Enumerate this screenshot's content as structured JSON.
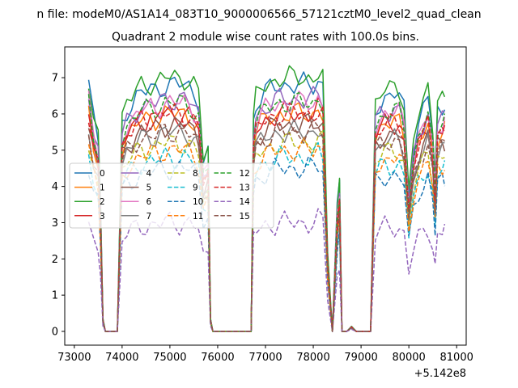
{
  "chart_data": {
    "type": "line",
    "suptitle": "n file: modeM0/AS1A14_083T10_9000006566_57121cztM0_level2_quad_clean",
    "title": "Quadrant 2 module wise count rates with 100.0s bins.",
    "x_offset_label": "+5.142e8",
    "xlim": [
      72800,
      81200
    ],
    "ylim": [
      -0.38,
      7.85
    ],
    "x_ticks": [
      73000,
      74000,
      75000,
      76000,
      77000,
      78000,
      79000,
      80000,
      81000
    ],
    "x_tick_labels": [
      "73000",
      "74000",
      "75000",
      "76000",
      "77000",
      "78000",
      "79000",
      "80000",
      "81000"
    ],
    "y_ticks": [
      0,
      1,
      2,
      3,
      4,
      5,
      6,
      7
    ],
    "y_tick_labels": [
      "0",
      "1",
      "2",
      "3",
      "4",
      "5",
      "6",
      "7"
    ],
    "grid": false,
    "legend_position": "center-left",
    "legend_columns": 4,
    "series": [
      {
        "name": "0",
        "color": "#1f77b4",
        "style": "solid",
        "level": 6.8
      },
      {
        "name": "1",
        "color": "#ff7f0e",
        "style": "solid",
        "level": 6.0
      },
      {
        "name": "2",
        "color": "#2ca02c",
        "style": "solid",
        "level": 7.0
      },
      {
        "name": "3",
        "color": "#d62728",
        "style": "solid",
        "level": 6.0
      },
      {
        "name": "4",
        "color": "#9467bd",
        "style": "solid",
        "level": 6.4
      },
      {
        "name": "5",
        "color": "#8c564b",
        "style": "solid",
        "level": 5.7
      },
      {
        "name": "6",
        "color": "#e377c2",
        "style": "solid",
        "level": 6.3
      },
      {
        "name": "7",
        "color": "#7f7f7f",
        "style": "solid",
        "level": 5.5
      },
      {
        "name": "8",
        "color": "#bcbd22",
        "style": "dashed",
        "level": 5.2
      },
      {
        "name": "9",
        "color": "#17becf",
        "style": "dashed",
        "level": 4.8
      },
      {
        "name": "10",
        "color": "#1f77b4",
        "style": "dashed",
        "level": 4.5
      },
      {
        "name": "11",
        "color": "#ff7f0e",
        "style": "dashed",
        "level": 5.0
      },
      {
        "name": "12",
        "color": "#2ca02c",
        "style": "dashed",
        "level": 6.3
      },
      {
        "name": "13",
        "color": "#d62728",
        "style": "dashed",
        "level": 6.0
      },
      {
        "name": "14",
        "color": "#9467bd",
        "style": "dashed",
        "level": 3.0
      },
      {
        "name": "15",
        "color": "#8c564b",
        "style": "dashed",
        "level": 5.5
      }
    ],
    "activity_profile": [
      [
        73300,
        1.0
      ],
      [
        73400,
        0.86
      ],
      [
        73500,
        0.78
      ],
      [
        73550,
        0.5
      ],
      [
        73600,
        0.05
      ],
      [
        73650,
        0.0
      ],
      [
        73700,
        0.0
      ],
      [
        73800,
        0.0
      ],
      [
        73900,
        0.0
      ],
      [
        74000,
        0.85
      ],
      [
        74100,
        0.9
      ],
      [
        74200,
        0.92
      ],
      [
        74300,
        0.95
      ],
      [
        74400,
        0.97
      ],
      [
        74500,
        0.97
      ],
      [
        74600,
        0.98
      ],
      [
        74700,
        0.98
      ],
      [
        74800,
        0.99
      ],
      [
        74900,
        1.0
      ],
      [
        75000,
        1.0
      ],
      [
        75100,
        1.0
      ],
      [
        75200,
        1.0
      ],
      [
        75300,
        1.0
      ],
      [
        75400,
        0.99
      ],
      [
        75500,
        0.97
      ],
      [
        75600,
        0.94
      ],
      [
        75700,
        0.68
      ],
      [
        75800,
        0.72
      ],
      [
        75850,
        0.05
      ],
      [
        75900,
        0.0
      ],
      [
        76000,
        0.0
      ],
      [
        76100,
        0.0
      ],
      [
        76200,
        0.0
      ],
      [
        76300,
        0.0
      ],
      [
        76400,
        0.0
      ],
      [
        76500,
        0.0
      ],
      [
        76600,
        0.0
      ],
      [
        76700,
        0.0
      ],
      [
        76750,
        0.85
      ],
      [
        76800,
        0.92
      ],
      [
        76900,
        0.95
      ],
      [
        77000,
        0.97
      ],
      [
        77100,
        0.98
      ],
      [
        77200,
        0.99
      ],
      [
        77300,
        1.0
      ],
      [
        77400,
        1.0
      ],
      [
        77500,
        1.0
      ],
      [
        77600,
        1.0
      ],
      [
        77700,
        1.0
      ],
      [
        77800,
        1.0
      ],
      [
        77900,
        1.0
      ],
      [
        78000,
        1.0
      ],
      [
        78100,
        1.02
      ],
      [
        78200,
        1.0
      ],
      [
        78300,
        0.3
      ],
      [
        78400,
        0.0
      ],
      [
        78500,
        0.5
      ],
      [
        78550,
        0.6
      ],
      [
        78600,
        0.0
      ],
      [
        78700,
        0.0
      ],
      [
        78800,
        0.02
      ],
      [
        78900,
        0.0
      ],
      [
        79000,
        0.0
      ],
      [
        79100,
        0.0
      ],
      [
        79200,
        0.0
      ],
      [
        79300,
        0.9
      ],
      [
        79400,
        0.93
      ],
      [
        79500,
        0.95
      ],
      [
        79600,
        0.95
      ],
      [
        79700,
        0.96
      ],
      [
        79800,
        0.96
      ],
      [
        79900,
        0.9
      ],
      [
        80000,
        0.55
      ],
      [
        80100,
        0.75
      ],
      [
        80200,
        0.85
      ],
      [
        80300,
        0.9
      ],
      [
        80400,
        0.95
      ],
      [
        80500,
        0.8
      ],
      [
        80550,
        0.6
      ],
      [
        80600,
        0.9
      ],
      [
        80700,
        0.92
      ],
      [
        80750,
        0.93
      ]
    ]
  }
}
